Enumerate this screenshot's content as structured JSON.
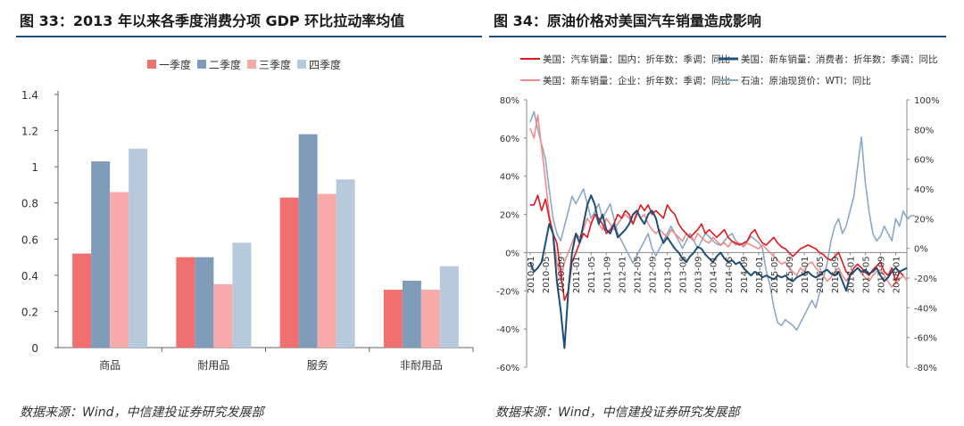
{
  "left": {
    "title": "图 33：2013 年以来各季度消费分项 GDP 环比拉动率均值",
    "source": "数据来源：Wind，中信建投证券研究发展部"
  },
  "right": {
    "title": "图 34：原油价格对美国汽车销量造成影响",
    "source": "数据来源：Wind，中信建投证券研究发展部"
  },
  "chart_data": [
    {
      "type": "bar",
      "title": "2013 年以来各季度消费分项 GDP 环比拉动率均值",
      "categories": [
        "商品",
        "耐用品",
        "服务",
        "非耐用品"
      ],
      "series": [
        {
          "name": "一季度",
          "color": "#f07070",
          "values": [
            0.52,
            0.5,
            0.83,
            0.32
          ]
        },
        {
          "name": "二季度",
          "color": "#7f9db9",
          "values": [
            1.03,
            0.5,
            1.18,
            0.37
          ]
        },
        {
          "name": "三季度",
          "color": "#f7aaaa",
          "values": [
            0.86,
            0.35,
            0.85,
            0.32
          ]
        },
        {
          "name": "四季度",
          "color": "#b7c9dd",
          "values": [
            1.1,
            0.58,
            0.93,
            0.45
          ]
        }
      ],
      "ylim": [
        0,
        1.4
      ],
      "yticks": [
        "0",
        "0.2",
        "0.4",
        "0.6",
        "0.8",
        "1",
        "1.2",
        "1.4"
      ],
      "legend": "top"
    },
    {
      "type": "line",
      "title": "原油价格对美国汽车销量造成影响",
      "x_start": "2010-01",
      "x_step_months": 1,
      "xtick_labels": [
        "2010-01",
        "2010-05",
        "2010-09",
        "2011-01",
        "2011-05",
        "2011-09",
        "2012-01",
        "2012-05",
        "2012-09",
        "2013-01",
        "2013-05",
        "2013-09",
        "2014-01",
        "2014-05",
        "2014-09",
        "2015-01",
        "2015-05",
        "2015-09",
        "2016-01",
        "2016-05",
        "2016-09",
        "2017-01",
        "2017-05",
        "2017-09",
        "2018-01"
      ],
      "left_axis": {
        "ylim": [
          -60,
          80
        ],
        "ticks": [
          "80%",
          "60%",
          "40%",
          "20%",
          "0%",
          "-20%",
          "-40%",
          "-60%"
        ]
      },
      "right_axis": {
        "ylim": [
          -80,
          100
        ],
        "ticks": [
          "100%",
          "80%",
          "60%",
          "40%",
          "20%",
          "0%",
          "-20%",
          "-40%",
          "-60%",
          "-80%"
        ]
      },
      "series": [
        {
          "name": "美国：汽车销量：国内：折年数：季调：同比",
          "color": "#e0191e",
          "axis": "left",
          "values": [
            25,
            25,
            30,
            22,
            28,
            18,
            10,
            5,
            -10,
            -25,
            -20,
            -5,
            0,
            5,
            10,
            8,
            15,
            20,
            18,
            15,
            10,
            12,
            15,
            20,
            18,
            22,
            20,
            15,
            20,
            25,
            22,
            25,
            20,
            22,
            20,
            18,
            25,
            22,
            20,
            15,
            12,
            10,
            8,
            10,
            12,
            15,
            10,
            12,
            10,
            8,
            10,
            12,
            8,
            6,
            5,
            4,
            5,
            6,
            10,
            12,
            8,
            5,
            4,
            6,
            8,
            5,
            3,
            2,
            0,
            -2,
            0,
            2,
            3,
            4,
            3,
            2,
            0,
            -1,
            -3,
            -4,
            -2,
            0,
            -5,
            -10,
            -12,
            -8,
            -6,
            -8,
            -10,
            -12,
            -9,
            -7,
            -5,
            -10,
            -12,
            -8,
            -15,
            -10,
            -12
          ]
        },
        {
          "name": "美国：新车销量：消费者：折年数：季调：同比",
          "color": "#1f4e79",
          "axis": "left",
          "values": [
            -5,
            -10,
            -8,
            -5,
            5,
            15,
            10,
            -15,
            -30,
            -50,
            -20,
            0,
            10,
            5,
            15,
            25,
            30,
            25,
            15,
            20,
            12,
            10,
            15,
            8,
            10,
            12,
            15,
            20,
            22,
            18,
            15,
            20,
            22,
            18,
            10,
            5,
            8,
            5,
            2,
            0,
            -3,
            -5,
            -2,
            0,
            3,
            2,
            -1,
            -3,
            -5,
            -2,
            0,
            -3,
            -5,
            -4,
            -6,
            -5,
            -8,
            -10,
            -12,
            -10,
            -11,
            -13,
            -12,
            -13,
            -14,
            -12,
            -13,
            -12,
            -14,
            -15,
            -13,
            -12,
            -11,
            -10,
            -12,
            -13,
            -12,
            -10,
            -9,
            -11,
            -12,
            -10,
            -15,
            -20,
            -12,
            -10,
            -8,
            -10,
            -9,
            -11,
            -10,
            -8,
            -12,
            -15,
            -13,
            -10,
            -8,
            -10,
            -9,
            -8
          ]
        },
        {
          "name": "美国：新车销量：企业：折年数：季调：同比",
          "color": "#f28b8b",
          "axis": "left",
          "values": [
            65,
            60,
            72,
            55,
            38,
            20,
            10,
            -5,
            -15,
            -5,
            0,
            5,
            10,
            8,
            12,
            18,
            15,
            20,
            15,
            12,
            18,
            15,
            12,
            15,
            18,
            20,
            18,
            15,
            22,
            18,
            20,
            15,
            12,
            10,
            12,
            10,
            8,
            12,
            10,
            8,
            6,
            10,
            8,
            6,
            10,
            8,
            6,
            5,
            8,
            6,
            4,
            5,
            3,
            6,
            4,
            5,
            3,
            5,
            4,
            3,
            2,
            4,
            2,
            0,
            -2,
            -4,
            -6,
            -5,
            -8,
            -10,
            -12,
            -8,
            -10,
            -6,
            -5,
            -8,
            -10,
            -12,
            -15,
            -13,
            -10,
            -8,
            -12,
            -15,
            -12,
            -10,
            -8,
            -11,
            -13,
            -15,
            -12,
            -10,
            -9,
            -12,
            -15,
            -18,
            -16,
            -14,
            -12,
            -15
          ]
        },
        {
          "name": "石油：原油现货价：WTI：同比",
          "color": "#8aa9c8",
          "axis": "right",
          "values": [
            85,
            92,
            80,
            70,
            60,
            40,
            20,
            10,
            5,
            15,
            25,
            35,
            30,
            35,
            40,
            30,
            20,
            25,
            30,
            20,
            25,
            30,
            20,
            10,
            5,
            0,
            -5,
            -10,
            -5,
            0,
            5,
            10,
            0,
            -5,
            0,
            5,
            10,
            15,
            10,
            5,
            0,
            5,
            10,
            5,
            0,
            5,
            10,
            8,
            5,
            3,
            2,
            5,
            8,
            10,
            5,
            3,
            2,
            5,
            8,
            6,
            4,
            0,
            -15,
            -25,
            -40,
            -50,
            -52,
            -48,
            -50,
            -52,
            -55,
            -50,
            -45,
            -40,
            -35,
            -40,
            -30,
            -20,
            -10,
            5,
            15,
            20,
            10,
            15,
            25,
            35,
            55,
            75,
            45,
            25,
            10,
            5,
            8,
            15,
            10,
            5,
            20,
            15,
            25,
            20,
            22,
            22
          ]
        }
      ]
    }
  ]
}
